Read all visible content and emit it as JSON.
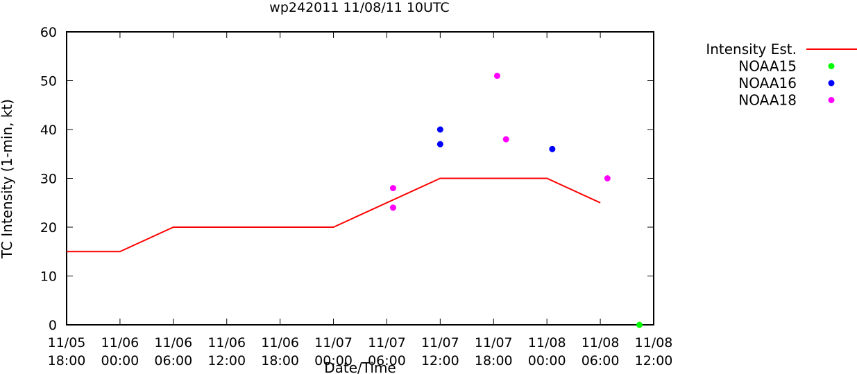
{
  "chart_data": {
    "type": "line",
    "title": "wp242011 11/08/11 10UTC",
    "xlabel": "Date/Time",
    "ylabel": "TC Intensity (1-min, kt)",
    "xlim": [
      0,
      66
    ],
    "ylim": [
      0,
      60
    ],
    "yticks": [
      0,
      10,
      20,
      30,
      40,
      50,
      60
    ],
    "xticks": [
      {
        "x": 0,
        "date": "11/05",
        "time": "18:00"
      },
      {
        "x": 6,
        "date": "11/06",
        "time": "00:00"
      },
      {
        "x": 12,
        "date": "11/06",
        "time": "06:00"
      },
      {
        "x": 18,
        "date": "11/06",
        "time": "12:00"
      },
      {
        "x": 24,
        "date": "11/06",
        "time": "18:00"
      },
      {
        "x": 30,
        "date": "11/07",
        "time": "00:00"
      },
      {
        "x": 36,
        "date": "11/07",
        "time": "06:00"
      },
      {
        "x": 42,
        "date": "11/07",
        "time": "12:00"
      },
      {
        "x": 48,
        "date": "11/07",
        "time": "18:00"
      },
      {
        "x": 54,
        "date": "11/08",
        "time": "00:00"
      },
      {
        "x": 60,
        "date": "11/08",
        "time": "06:00"
      },
      {
        "x": 66,
        "date": "11/08",
        "time": "12:00"
      }
    ],
    "x_units": "hours since 11/05 18:00",
    "grid": false,
    "legend_position": "outside-right",
    "series": [
      {
        "name": "Intensity Est.",
        "kind": "line",
        "color": "#ff0000",
        "points": [
          [
            0,
            15
          ],
          [
            6,
            15
          ],
          [
            12,
            20
          ],
          [
            30,
            20
          ],
          [
            42,
            30
          ],
          [
            54,
            30
          ],
          [
            60,
            25
          ]
        ]
      },
      {
        "name": "NOAA15",
        "kind": "scatter",
        "color": "#00ff00",
        "points": [
          [
            64.4,
            0
          ]
        ]
      },
      {
        "name": "NOAA16",
        "kind": "scatter",
        "color": "#0000ff",
        "points": [
          [
            42.0,
            40
          ],
          [
            42.0,
            37
          ],
          [
            54.6,
            36
          ]
        ]
      },
      {
        "name": "NOAA18",
        "kind": "scatter",
        "color": "#ff00ff",
        "points": [
          [
            36.7,
            28
          ],
          [
            36.7,
            24
          ],
          [
            48.4,
            51
          ],
          [
            49.4,
            38
          ],
          [
            60.8,
            30
          ]
        ]
      }
    ]
  }
}
